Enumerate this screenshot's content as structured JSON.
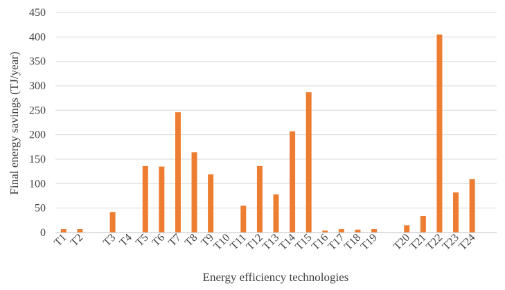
{
  "chart_data": {
    "type": "bar",
    "title": "",
    "xlabel": "Energy efficiency technologies",
    "ylabel": "Final energy savings (TJ/year)",
    "ylim": [
      0,
      450
    ],
    "yticks": [
      0,
      50,
      100,
      150,
      200,
      250,
      300,
      350,
      400,
      450
    ],
    "grid": true,
    "legend": "none",
    "slots": 27,
    "categories": [
      "T1",
      "T2",
      "T3",
      "T4",
      "T5",
      "T6",
      "T7",
      "T8",
      "T9",
      "T10",
      "T11",
      "T12",
      "T13",
      "T14",
      "T15",
      "T16",
      "T17",
      "T18",
      "T19",
      "T20",
      "T21",
      "T22",
      "T23",
      "T24"
    ],
    "slot_index": [
      0,
      1,
      3,
      4,
      5,
      6,
      7,
      8,
      9,
      10,
      11,
      12,
      13,
      14,
      15,
      16,
      17,
      18,
      19,
      21,
      22,
      23,
      24,
      25
    ],
    "values": [
      7,
      7,
      42,
      0,
      136,
      135,
      246,
      164,
      119,
      0,
      55,
      136,
      78,
      207,
      287,
      4,
      7,
      6,
      7,
      15,
      34,
      405,
      82,
      109
    ],
    "colors": {
      "bar": "#ED7D31",
      "grid": "#d9d9d9",
      "axis": "#bfbfbf",
      "text": "#404040"
    }
  }
}
